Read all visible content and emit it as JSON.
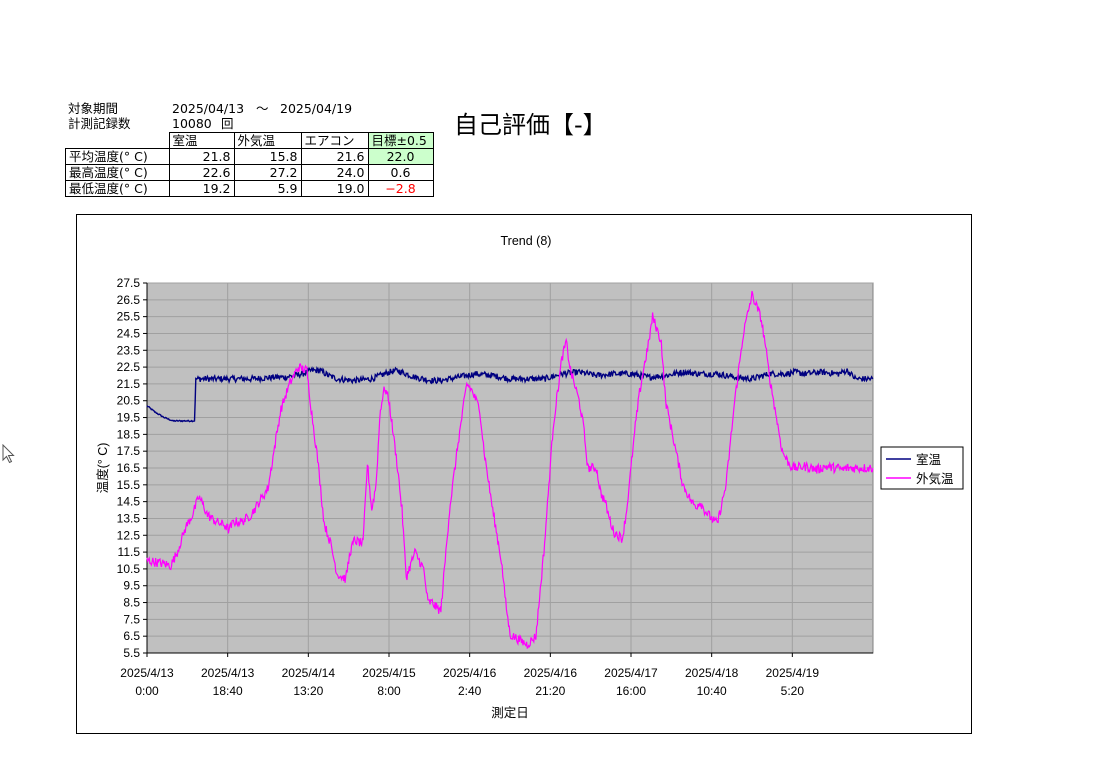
{
  "header": {
    "period_label": "対象期間",
    "period_start": "2025/04/13",
    "period_sep": "～",
    "period_end": "2025/04/19",
    "records_label": "計測記録数",
    "records_count": "10080",
    "records_unit": "回"
  },
  "evaluation": {
    "text": "自己評価【-】"
  },
  "summary_table": {
    "columns": [
      "",
      "室温",
      "外気温",
      "エアコン",
      "目標±0.5"
    ],
    "rows": [
      {
        "label": "平均温度(° C)",
        "room": "21.8",
        "outdoor": "15.8",
        "aircon": "21.6",
        "target": "22.0"
      },
      {
        "label": "最高温度(° C)",
        "room": "22.6",
        "outdoor": "27.2",
        "aircon": "24.0",
        "target": "0.6"
      },
      {
        "label": "最低温度(° C)",
        "room": "19.2",
        "outdoor": "5.9",
        "aircon": "19.0",
        "target": "−2.8"
      }
    ],
    "colors": {
      "target_highlight": "#ccffcc",
      "negative": "#ff0000"
    }
  },
  "chart_data": {
    "type": "line",
    "title": "Trend (8)",
    "xlabel": "測定日",
    "ylabel": "温度(° C)",
    "ylim": [
      5.5,
      27.5
    ],
    "ytick_step": 1.0,
    "xlim_hours": [
      0,
      168
    ],
    "xtick_labels": [
      [
        "2025/4/13",
        "0:00"
      ],
      [
        "2025/4/13",
        "18:40"
      ],
      [
        "2025/4/14",
        "13:20"
      ],
      [
        "2025/4/15",
        "8:00"
      ],
      [
        "2025/4/16",
        "2:40"
      ],
      [
        "2025/4/16",
        "21:20"
      ],
      [
        "2025/4/17",
        "16:00"
      ],
      [
        "2025/4/18",
        "10:40"
      ],
      [
        "2025/4/19",
        "5:20"
      ]
    ],
    "grid": true,
    "plot_background": "#c0c0c0",
    "legend_position": "right",
    "series": [
      {
        "name": "室温",
        "color": "#000080",
        "x": [
          0,
          2,
          4,
          6,
          8,
          10,
          11,
          11.3,
          16,
          24,
          30,
          32,
          34,
          36,
          38,
          40,
          42,
          44,
          48,
          52,
          56,
          58,
          60,
          62,
          64,
          66,
          68,
          72,
          76,
          80,
          84,
          88,
          92,
          96,
          100,
          104,
          108,
          112,
          116,
          120,
          124,
          128,
          132,
          136,
          140,
          144,
          148,
          150,
          152,
          156,
          160,
          162,
          164,
          166,
          168
        ],
        "y": [
          20.2,
          19.8,
          19.5,
          19.3,
          19.3,
          19.3,
          19.3,
          21.8,
          21.8,
          21.8,
          21.9,
          21.9,
          22.0,
          22.1,
          22.3,
          22.3,
          22.0,
          21.8,
          21.7,
          21.8,
          22.2,
          22.3,
          22.1,
          21.9,
          21.8,
          21.7,
          21.7,
          21.9,
          22.1,
          22.0,
          21.8,
          21.8,
          21.8,
          22.1,
          22.2,
          22.0,
          22.1,
          22.1,
          21.9,
          22.0,
          22.2,
          22.1,
          22.1,
          21.9,
          21.8,
          22.1,
          22.1,
          22.2,
          22.1,
          22.2,
          22.1,
          22.3,
          21.8,
          21.8,
          21.8
        ]
      },
      {
        "name": "外気温",
        "color": "#ff00ff",
        "x": [
          0,
          2,
          4,
          5.5,
          7,
          9,
          10.5,
          12,
          13,
          14,
          16,
          18,
          19,
          20,
          22,
          24,
          26,
          28,
          30,
          31,
          33,
          35,
          37,
          38,
          39.5,
          41,
          42.5,
          44,
          46,
          47,
          48,
          50,
          51,
          52,
          53,
          54,
          55,
          56,
          57,
          58,
          59,
          60,
          62,
          64,
          65,
          66,
          67,
          68,
          70,
          72,
          74,
          75,
          77,
          78,
          80,
          82,
          83,
          84,
          86,
          88,
          90,
          92,
          94,
          95,
          96,
          97,
          98,
          100,
          101,
          102,
          104,
          105,
          106,
          107,
          108,
          110,
          111,
          112,
          113,
          114,
          115,
          116,
          117,
          119,
          120,
          122,
          124,
          126,
          127,
          128,
          129,
          130,
          131,
          132,
          134,
          136,
          137,
          138,
          140,
          142,
          143,
          144,
          145,
          146,
          147,
          148,
          149,
          150,
          152,
          154,
          155,
          156,
          157,
          159,
          160,
          161,
          162,
          163,
          164,
          165,
          166,
          167,
          168
        ],
        "y": [
          11.0,
          10.9,
          10.8,
          10.7,
          11.5,
          13.0,
          13.7,
          14.8,
          14.3,
          13.7,
          13.3,
          13.1,
          12.8,
          13.3,
          13.3,
          13.7,
          14.5,
          15.3,
          18.5,
          20.0,
          21.5,
          22.5,
          22.3,
          20.0,
          17.0,
          13.2,
          12.0,
          10.2,
          9.9,
          11.5,
          12.2,
          12.0,
          16.8,
          14.0,
          15.5,
          20.0,
          21.3,
          20.5,
          18.5,
          16.5,
          14.0,
          10.0,
          11.5,
          10.5,
          8.5,
          8.5,
          8.2,
          8.0,
          14.0,
          18.0,
          21.5,
          21.2,
          20.0,
          17.5,
          14.0,
          11.0,
          8.5,
          6.6,
          6.3,
          6.0,
          6.5,
          12.0,
          19.0,
          21.0,
          23.0,
          24.0,
          22.3,
          20.5,
          19.0,
          16.5,
          16.5,
          15.0,
          14.5,
          13.5,
          12.7,
          12.3,
          14.0,
          16.5,
          19.0,
          21.0,
          22.5,
          23.8,
          25.5,
          24.0,
          20.5,
          18.0,
          15.5,
          14.5,
          14.2,
          14.5,
          14.0,
          13.7,
          13.4,
          13.2,
          15.5,
          20.5,
          22.5,
          24.5,
          26.8,
          25.5,
          24.0,
          22.0,
          20.5,
          19.0,
          17.5,
          17.0,
          16.6,
          16.5,
          16.6,
          16.5,
          16.4,
          16.5,
          16.6,
          16.5,
          16.5,
          16.4,
          16.5,
          16.5,
          16.5,
          16.5,
          16.5,
          16.5,
          16.5
        ]
      }
    ]
  }
}
